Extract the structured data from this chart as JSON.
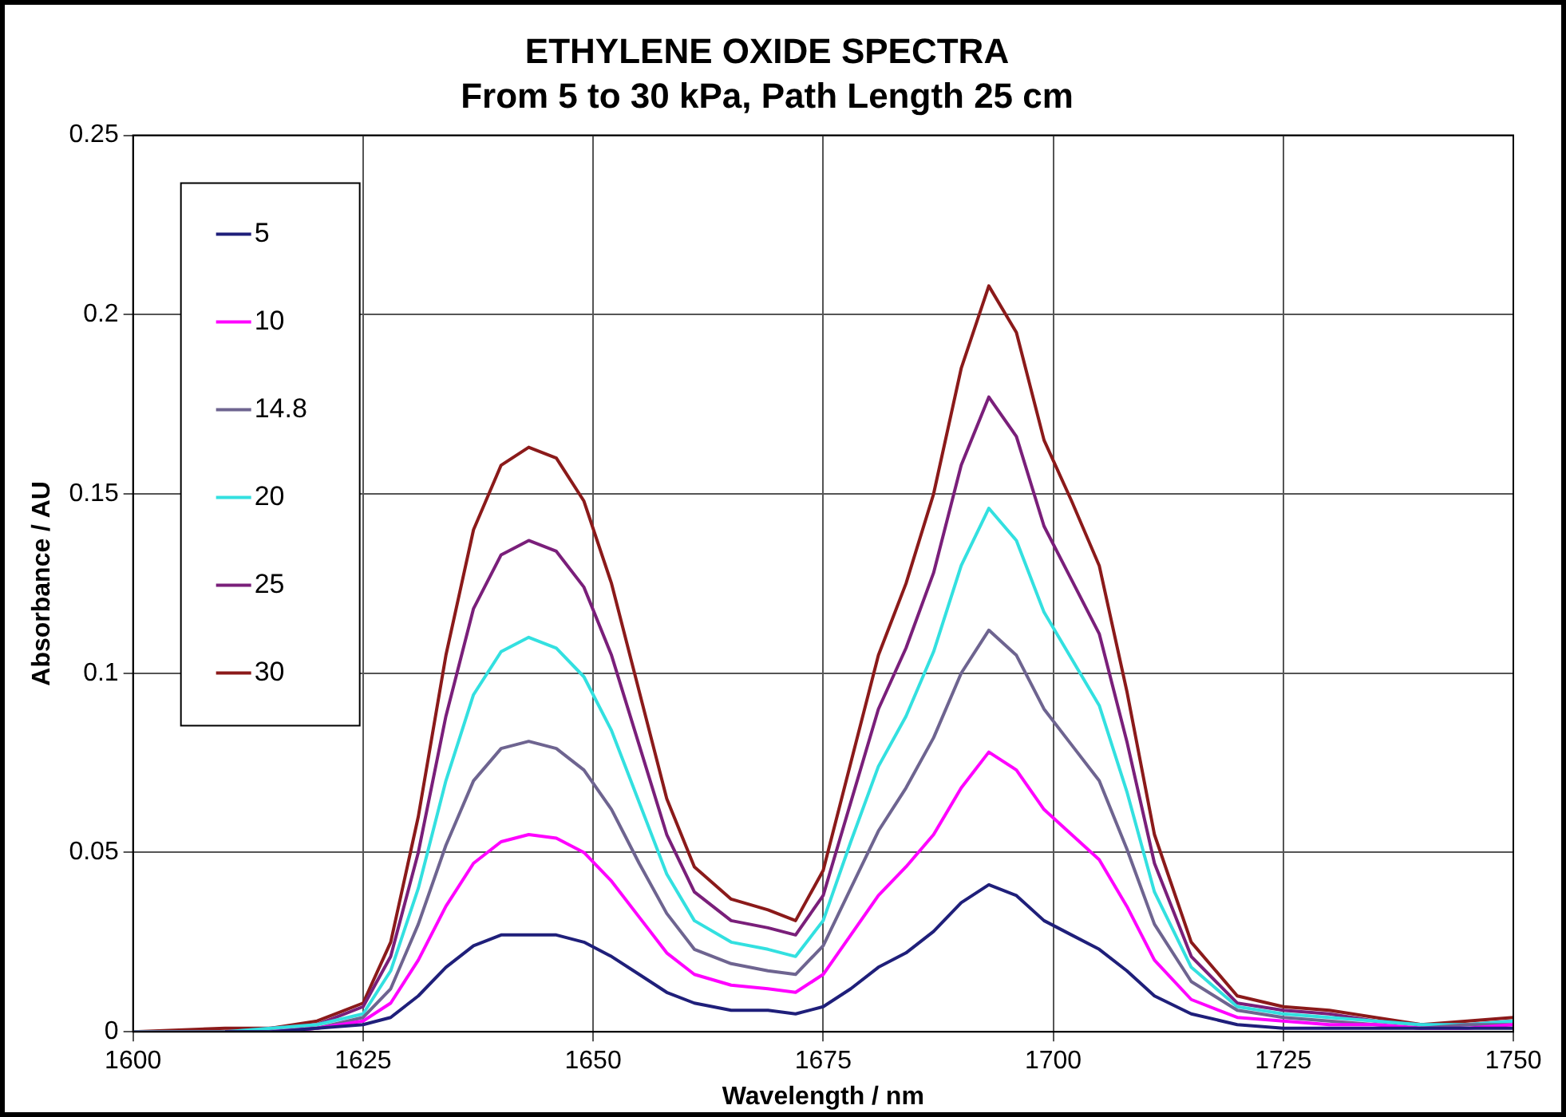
{
  "chart_data": {
    "type": "line",
    "title": "ETHYLENE OXIDE SPECTRA",
    "subtitle": "From 5 to 30 kPa, Path Length 25 cm",
    "xlabel": "Wavelength / nm",
    "ylabel": "Absorbance / AU",
    "x": [
      1600,
      1610,
      1615,
      1620,
      1625,
      1628,
      1631,
      1634,
      1637,
      1640,
      1643,
      1646,
      1649,
      1652,
      1655,
      1658,
      1661,
      1665,
      1669,
      1672,
      1675,
      1678,
      1681,
      1684,
      1687,
      1690,
      1693,
      1696,
      1699,
      1702,
      1705,
      1708,
      1711,
      1715,
      1720,
      1725,
      1730,
      1735,
      1740,
      1745,
      1750
    ],
    "series": [
      {
        "name": "5",
        "color": "#1f1f7a",
        "values": [
          null,
          0,
          0,
          0.001,
          0.002,
          0.004,
          0.01,
          0.018,
          0.024,
          0.027,
          0.027,
          0.027,
          0.025,
          0.021,
          0.016,
          0.011,
          0.008,
          0.006,
          0.006,
          0.005,
          0.007,
          0.012,
          0.018,
          0.022,
          0.028,
          0.036,
          0.041,
          0.038,
          0.031,
          0.027,
          0.023,
          0.017,
          0.01,
          0.005,
          0.002,
          0.001,
          0.001,
          0.001,
          0.001,
          0.001,
          0.001
        ]
      },
      {
        "name": "10",
        "color": "#ff00ff",
        "values": [
          null,
          null,
          0,
          0.001,
          0.003,
          0.008,
          0.02,
          0.035,
          0.047,
          0.053,
          0.055,
          0.054,
          0.05,
          0.042,
          0.032,
          0.022,
          0.016,
          0.013,
          0.012,
          0.011,
          0.016,
          0.027,
          0.038,
          0.046,
          0.055,
          0.068,
          0.078,
          0.073,
          0.062,
          0.055,
          0.048,
          0.035,
          0.02,
          0.009,
          0.004,
          0.003,
          0.002,
          0.002,
          0.001,
          0.001,
          0.002
        ]
      },
      {
        "name": "14.8",
        "color": "#6e6490",
        "values": [
          0,
          0,
          0,
          0.001,
          0.004,
          0.012,
          0.03,
          0.052,
          0.07,
          0.079,
          0.081,
          0.079,
          0.073,
          0.062,
          0.047,
          0.033,
          0.023,
          0.019,
          0.017,
          0.016,
          0.024,
          0.04,
          0.056,
          0.068,
          0.082,
          0.1,
          0.112,
          0.105,
          0.09,
          0.08,
          0.07,
          0.051,
          0.03,
          0.014,
          0.006,
          0.004,
          0.003,
          0.002,
          0.001,
          0.002,
          0.002
        ]
      },
      {
        "name": "20",
        "color": "#33e0e0",
        "values": [
          0,
          0,
          0.001,
          0.002,
          0.005,
          0.017,
          0.04,
          0.07,
          0.094,
          0.106,
          0.11,
          0.107,
          0.099,
          0.084,
          0.064,
          0.044,
          0.031,
          0.025,
          0.023,
          0.021,
          0.031,
          0.053,
          0.074,
          0.088,
          0.106,
          0.13,
          0.146,
          0.137,
          0.117,
          0.104,
          0.091,
          0.067,
          0.039,
          0.018,
          0.007,
          0.005,
          0.004,
          0.003,
          0.002,
          0.002,
          0.003
        ]
      },
      {
        "name": "25",
        "color": "#7a1f7a",
        "values": [
          0,
          0,
          0.001,
          0.002,
          0.007,
          0.021,
          0.05,
          0.088,
          0.118,
          0.133,
          0.137,
          0.134,
          0.124,
          0.105,
          0.08,
          0.055,
          0.039,
          0.031,
          0.029,
          0.027,
          0.038,
          0.064,
          0.09,
          0.107,
          0.128,
          0.158,
          0.177,
          0.166,
          0.141,
          0.126,
          0.111,
          0.081,
          0.047,
          0.021,
          0.008,
          0.006,
          0.005,
          0.003,
          0.002,
          0.002,
          0.003
        ]
      },
      {
        "name": "30",
        "color": "#8b1a1a",
        "values": [
          0,
          0.001,
          0.001,
          0.003,
          0.008,
          0.025,
          0.06,
          0.105,
          0.14,
          0.158,
          0.163,
          0.16,
          0.148,
          0.125,
          0.095,
          0.065,
          0.046,
          0.037,
          0.034,
          0.031,
          0.045,
          0.075,
          0.105,
          0.125,
          0.15,
          0.185,
          0.208,
          0.195,
          0.165,
          0.148,
          0.13,
          0.095,
          0.055,
          0.025,
          0.01,
          0.007,
          0.006,
          0.004,
          0.002,
          0.003,
          0.004
        ]
      }
    ],
    "xlim": [
      1600,
      1750
    ],
    "xticks": [
      1600,
      1625,
      1650,
      1675,
      1700,
      1725,
      1750
    ],
    "ylim": [
      0,
      0.25
    ],
    "yticks": [
      0,
      0.05,
      0.1,
      0.15,
      0.2,
      0.25
    ],
    "grid": true,
    "legend": "top left",
    "line_style": "solid"
  }
}
